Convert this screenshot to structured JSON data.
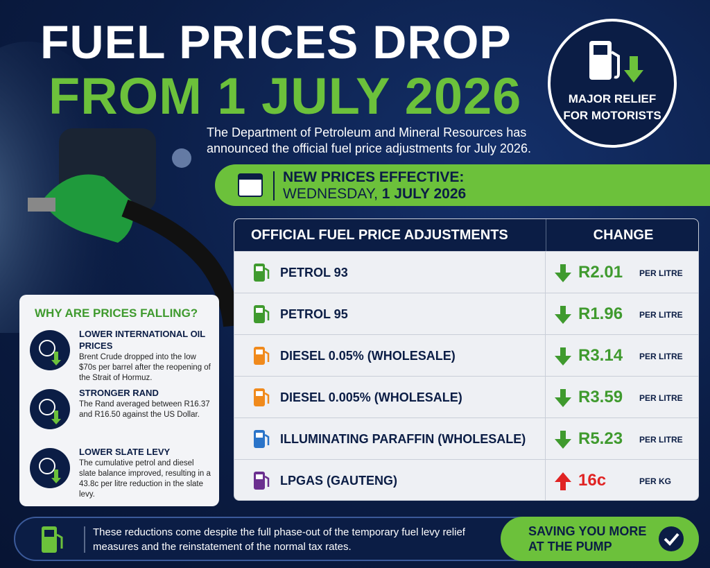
{
  "header": {
    "title_line1": "FUEL PRICES DROP",
    "title_line2": "FROM 1 JULY 2026",
    "intro": "The Department of Petroleum and Mineral Resources has announced the official fuel price adjustments for July 2026."
  },
  "badge": {
    "text": "MAJOR RELIEF FOR MOTORISTS"
  },
  "effective": {
    "label": "NEW PRICES EFFECTIVE:",
    "day": "WEDNESDAY,",
    "date": "1 JULY 2026"
  },
  "table": {
    "header": [
      "OFFICIAL FUEL PRICE ADJUSTMENTS",
      "CHANGE"
    ],
    "rows": [
      {
        "fuel": "PETROL 93",
        "change": "R2.01",
        "unit": "PER LITRE",
        "direction": "down",
        "icon_color": "#3f9a2e"
      },
      {
        "fuel": "PETROL 95",
        "change": "R1.96",
        "unit": "PER LITRE",
        "direction": "down",
        "icon_color": "#3f9a2e"
      },
      {
        "fuel": "DIESEL 0.05% (WHOLESALE)",
        "change": "R3.14",
        "unit": "PER LITRE",
        "direction": "down",
        "icon_color": "#f08a1c"
      },
      {
        "fuel": "DIESEL 0.005% (WHOLESALE)",
        "change": "R3.59",
        "unit": "PER LITRE",
        "direction": "down",
        "icon_color": "#f08a1c"
      },
      {
        "fuel": "ILLUMINATING PARAFFIN (WHOLESALE)",
        "change": "R5.23",
        "unit": "PER LITRE",
        "direction": "down",
        "icon_color": "#2a74c9"
      },
      {
        "fuel": "LPGAS (GAUTENG)",
        "change": "16c",
        "unit": "PER KG",
        "direction": "up",
        "icon_color": "#6b2f8f"
      }
    ]
  },
  "reasons": {
    "title": "WHY ARE PRICES FALLING?",
    "items": [
      {
        "heading": "LOWER INTERNATIONAL OIL PRICES",
        "text": "Brent Crude dropped into the low $70s per barrel after the reopening of the Strait of Hormuz."
      },
      {
        "heading": "STRONGER RAND",
        "text": "The Rand averaged between R16.37 and R16.50 against the US Dollar."
      },
      {
        "heading": "LOWER SLATE LEVY",
        "text": "The cumulative petrol and diesel slate balance improved, resulting in a 43.8c per litre reduction in the slate levy."
      }
    ]
  },
  "footer": {
    "note": "These reductions come despite the full phase-out of the temporary fuel levy relief measures and the reinstatement of the normal tax rates.",
    "cta": "SAVING YOU MORE AT THE PUMP"
  }
}
